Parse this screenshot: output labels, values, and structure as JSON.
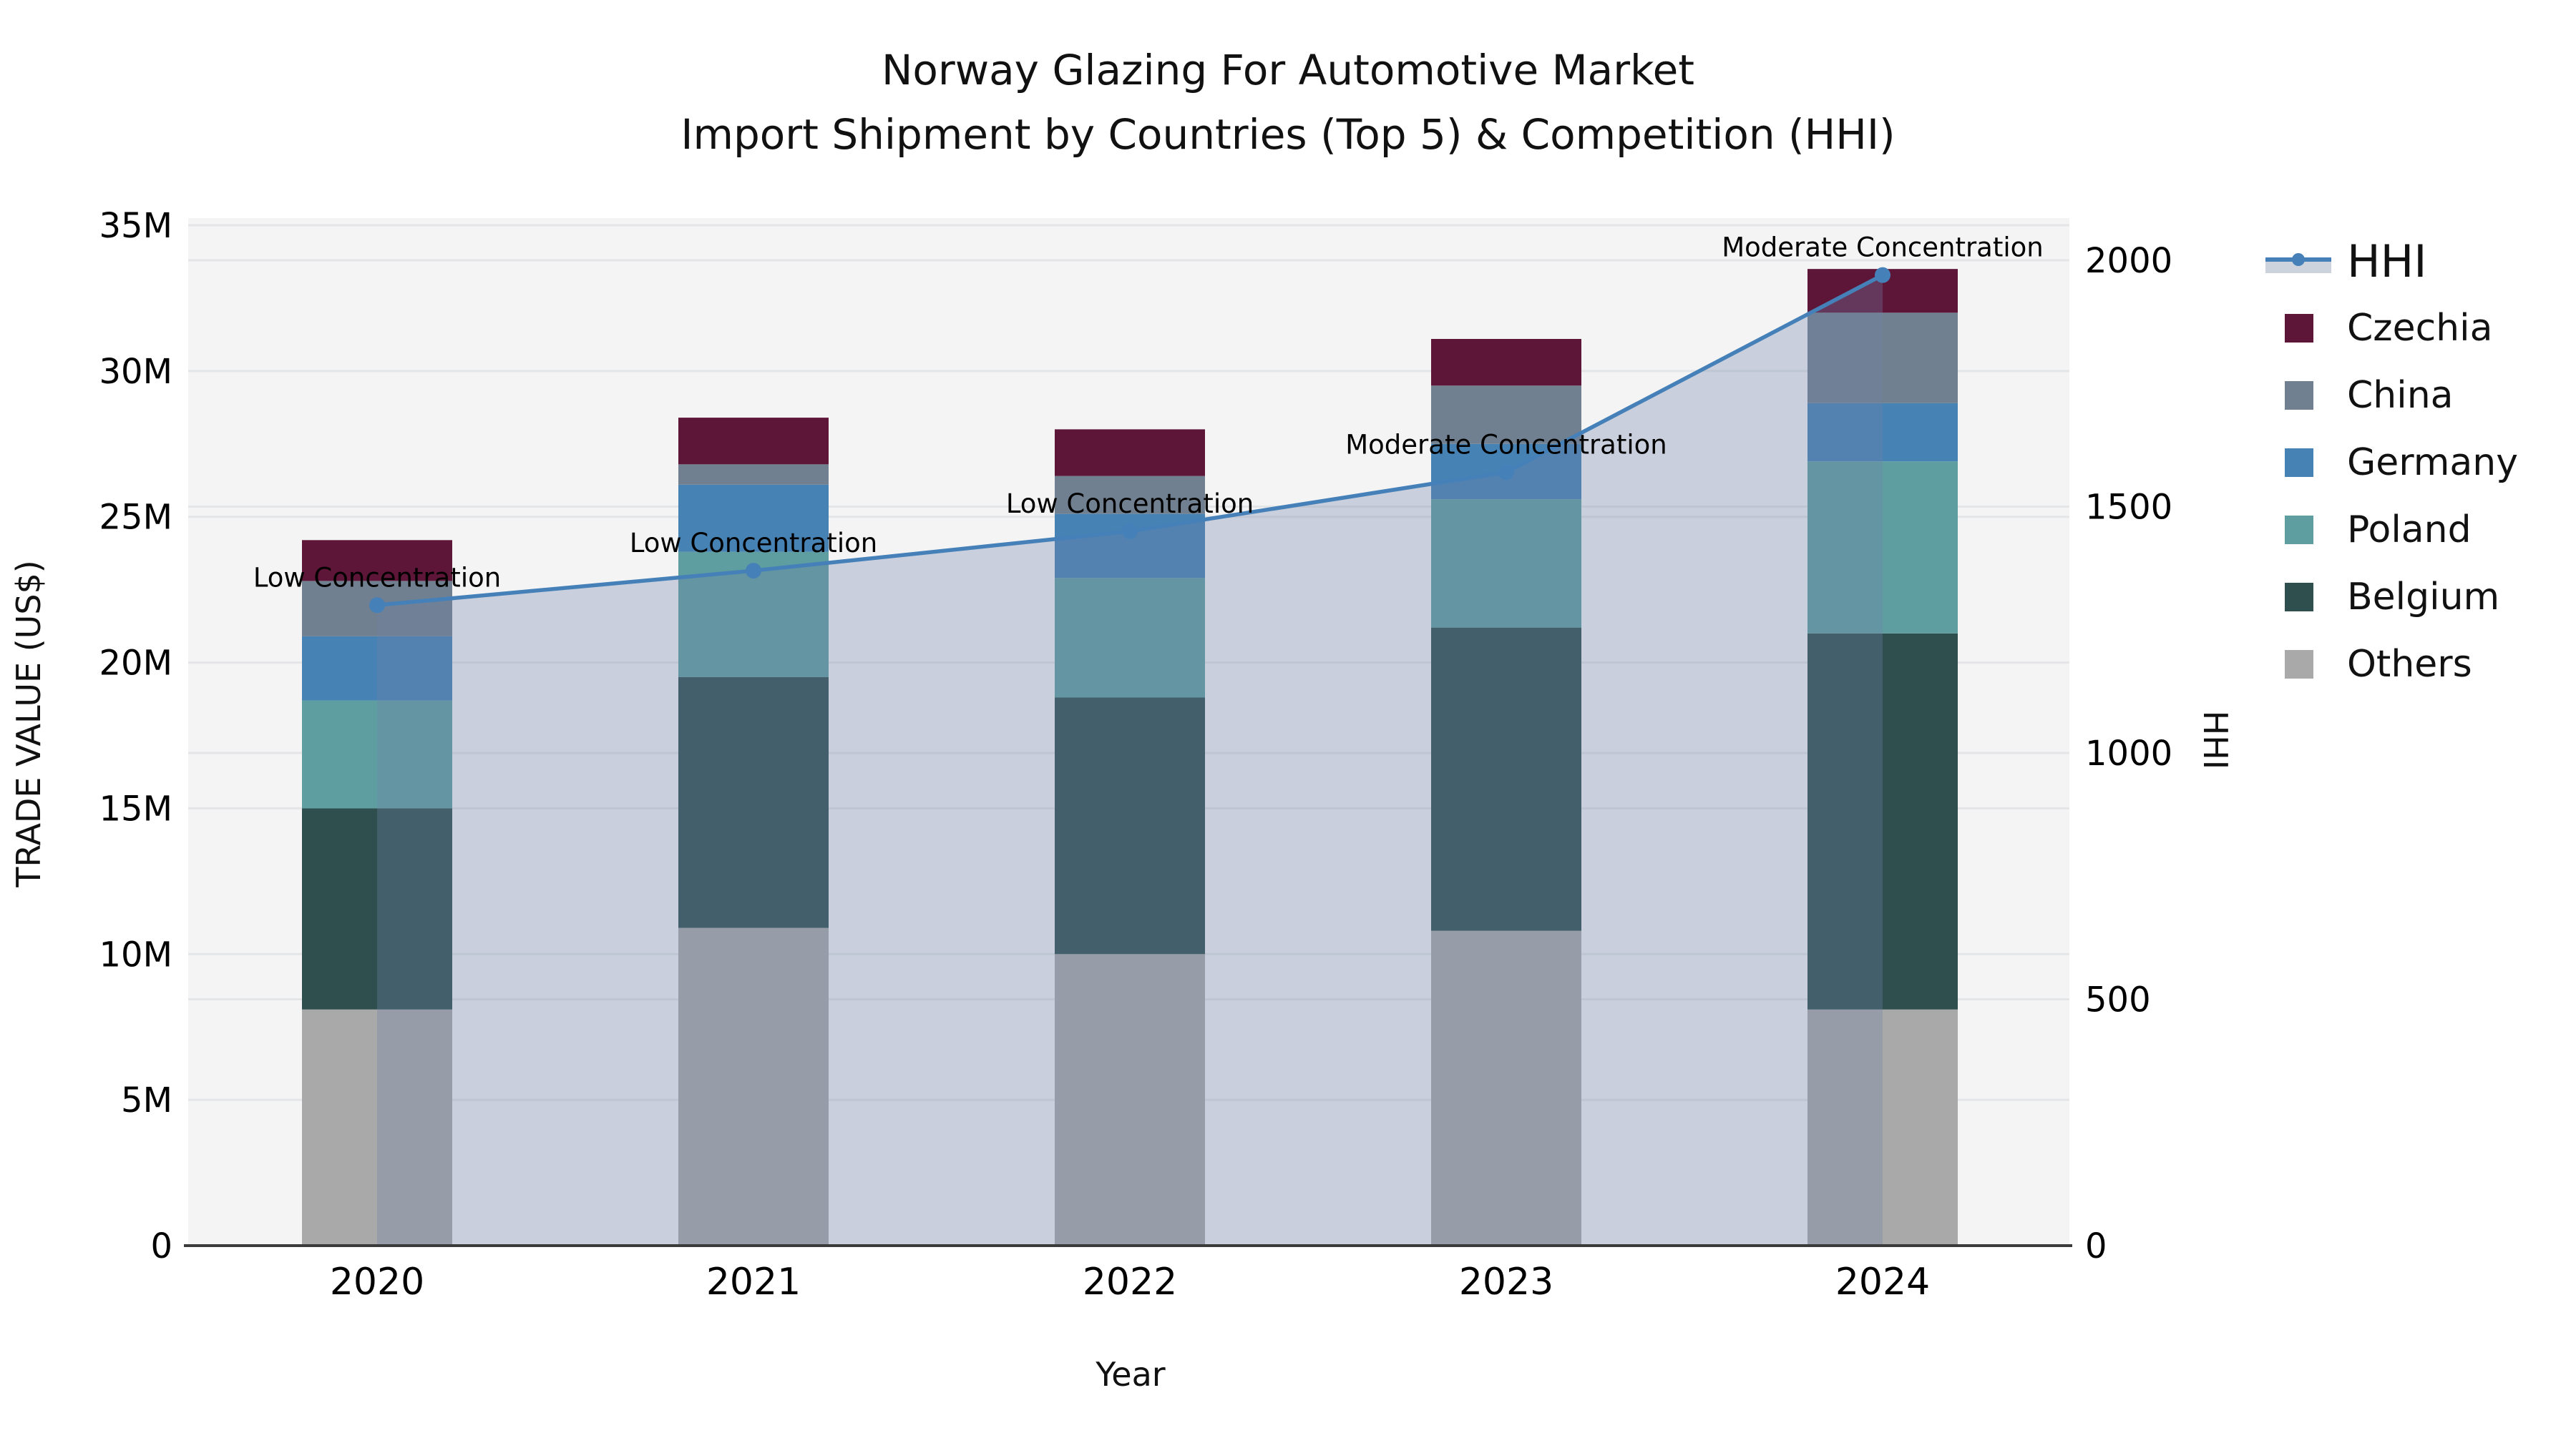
{
  "title": {
    "line1": "Norway Glazing For Automotive Market",
    "line2": "Import Shipment by Countries (Top 5) & Competition (HHI)"
  },
  "axes": {
    "x": {
      "label": "Year",
      "categories": [
        "2020",
        "2021",
        "2022",
        "2023",
        "2024"
      ]
    },
    "y_left": {
      "label": "TRADE VALUE (US$)",
      "ticks": [
        "0",
        "5M",
        "10M",
        "15M",
        "20M",
        "25M",
        "30M",
        "35M"
      ]
    },
    "y_right": {
      "label": "HHI",
      "ticks": [
        "0",
        "500",
        "1000",
        "1500",
        "2000"
      ]
    }
  },
  "legend": {
    "entries": [
      {
        "label": "HHI",
        "type": "line",
        "color": "#4581b8",
        "band": "#ccd3dd"
      },
      {
        "label": "Czechia",
        "type": "swatch",
        "color": "#5e1638"
      },
      {
        "label": "China",
        "type": "swatch",
        "color": "#708090"
      },
      {
        "label": "Germany",
        "type": "swatch",
        "color": "#4682b4"
      },
      {
        "label": "Poland",
        "type": "swatch",
        "color": "#5f9ea0"
      },
      {
        "label": "Belgium",
        "type": "swatch",
        "color": "#2f4f4f"
      },
      {
        "label": "Others",
        "type": "swatch",
        "color": "#a9a9a9"
      }
    ]
  },
  "chart_data": {
    "type": "bar",
    "stacked": true,
    "title": "Norway Glazing For Automotive Market — Import Shipment by Countries (Top 5) & Competition (HHI)",
    "xlabel": "Year",
    "ylabel": "TRADE VALUE (US$)",
    "y2label": "HHI",
    "unit": "million US$",
    "ylim": [
      0,
      35000000
    ],
    "y2lim": [
      0,
      2000
    ],
    "grid": "horizontal",
    "legend_position": "right",
    "categories": [
      "2020",
      "2021",
      "2022",
      "2023",
      "2024"
    ],
    "series": [
      {
        "name": "Others",
        "color": "#a9a9a9",
        "values_musd": [
          8.1,
          10.9,
          10.0,
          10.8,
          8.1
        ]
      },
      {
        "name": "Belgium",
        "color": "#2f4f4f",
        "values_musd": [
          6.9,
          8.6,
          8.8,
          10.4,
          12.9
        ]
      },
      {
        "name": "Poland",
        "color": "#5f9ea0",
        "values_musd": [
          3.7,
          4.3,
          4.1,
          4.4,
          5.9
        ]
      },
      {
        "name": "Germany",
        "color": "#4682b4",
        "values_musd": [
          2.2,
          2.3,
          2.2,
          1.9,
          2.0
        ]
      },
      {
        "name": "China",
        "color": "#708090",
        "values_musd": [
          1.9,
          0.7,
          1.3,
          2.0,
          3.1
        ]
      },
      {
        "name": "Czechia",
        "color": "#5e1638",
        "values_musd": [
          1.4,
          1.6,
          1.6,
          1.6,
          1.5
        ]
      }
    ],
    "totals_musd": [
      24.2,
      28.4,
      28.0,
      31.1,
      33.5
    ],
    "line_series": {
      "name": "HHI",
      "axis": "right",
      "values": [
        1300,
        1370,
        1450,
        1570,
        1970
      ],
      "color": "#4581b8",
      "area_fill_color": "#7184a7",
      "area_fill_opacity": 0.32
    },
    "annotations": [
      {
        "category": "2020",
        "text": "Low Concentration"
      },
      {
        "category": "2021",
        "text": "Low Concentration"
      },
      {
        "category": "2022",
        "text": "Low Concentration"
      },
      {
        "category": "2023",
        "text": "Moderate Concentration"
      },
      {
        "category": "2024",
        "text": "Moderate Concentration"
      }
    ]
  },
  "colors": {
    "plot_background": "#f4f4f5",
    "gridline": "#e4e5e7",
    "axis_line": "#3b3b3b",
    "text": "#000000"
  }
}
